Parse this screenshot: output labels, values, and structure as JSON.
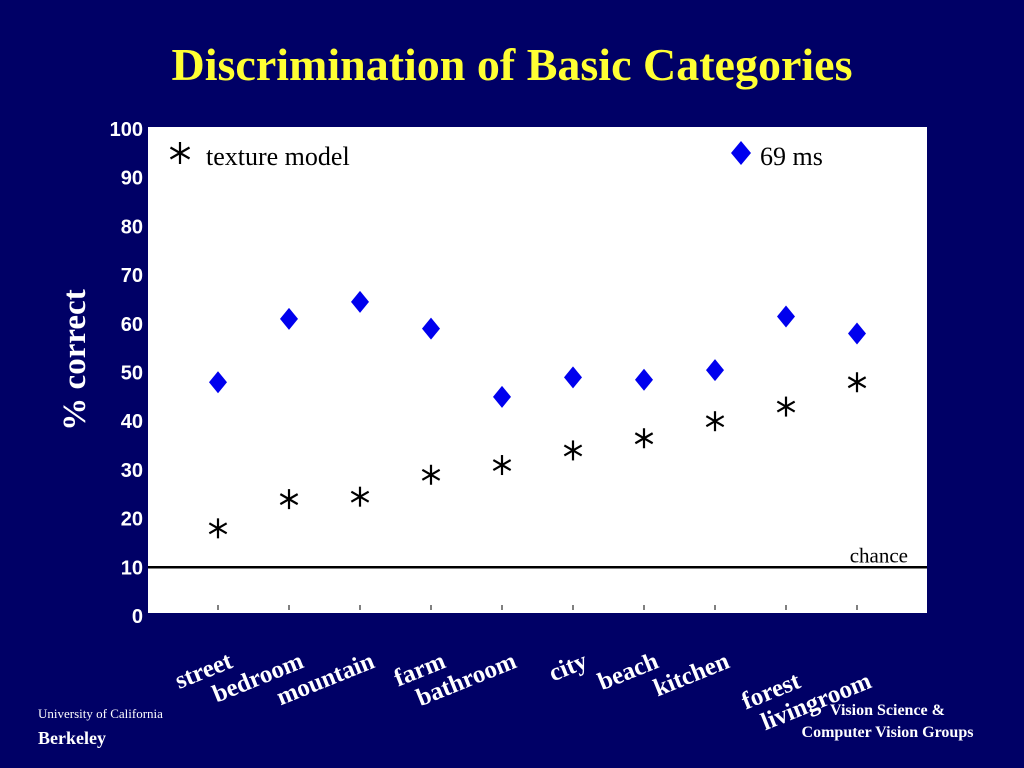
{
  "slide": {
    "title": "Discrimination of Basic Categories",
    "footer_left": {
      "line1": "University of California",
      "line2": "Berkeley"
    },
    "footer_right": {
      "line1": "Vision Science &",
      "line2": "Computer Vision Groups"
    }
  },
  "colors": {
    "background": "#000066",
    "title": "#ffff33",
    "plot_background": "#ffffff",
    "series_69ms": "#0000ee",
    "series_texture": "#000000"
  },
  "chart_data": {
    "type": "scatter",
    "title": "Discrimination of Basic Categories",
    "xlabel": "",
    "ylabel": "% correct",
    "ylim": [
      0,
      100
    ],
    "yticks": [
      "0",
      "10",
      "20",
      "30",
      "40",
      "50",
      "60",
      "70",
      "80",
      "90",
      "100"
    ],
    "categories": [
      "street",
      "bedroom",
      "mountain",
      "farm",
      "bathroom",
      "city",
      "beach",
      "kitchen",
      "forest",
      "livingroom"
    ],
    "series": [
      {
        "name": "texture model",
        "marker": "asterisk-icon",
        "color": "#000000",
        "values": [
          18,
          24,
          24.5,
          29,
          31,
          34,
          36.5,
          40,
          43,
          48
        ]
      },
      {
        "name": "69 ms",
        "marker": "diamond-icon",
        "color": "#0000ee",
        "values": [
          48,
          61,
          64.5,
          59,
          45,
          49,
          48.5,
          50.5,
          61.5,
          58
        ]
      }
    ],
    "reference_line": {
      "label": "chance",
      "value": 10
    },
    "legend_placement": "top"
  }
}
